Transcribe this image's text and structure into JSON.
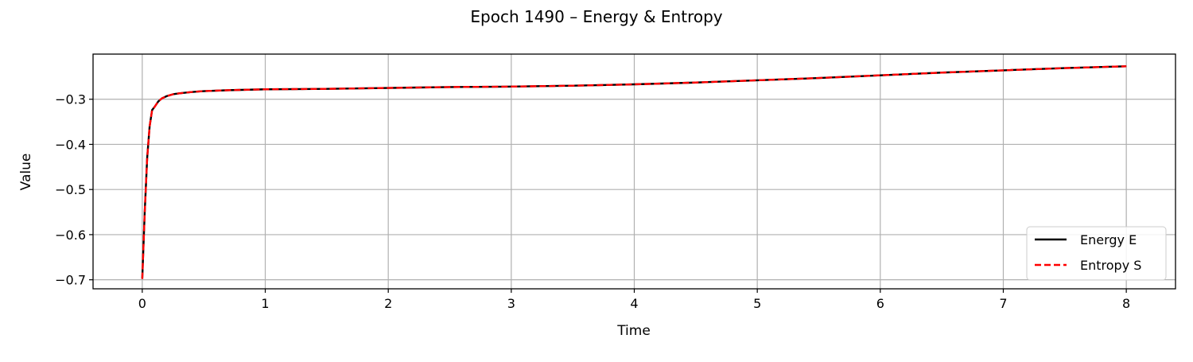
{
  "chart_data": {
    "type": "line",
    "title": "Epoch 1490 – Energy & Entropy",
    "xlabel": "Time",
    "ylabel": "Value",
    "xlim": [
      -0.4,
      8.4
    ],
    "ylim": [
      -0.72,
      -0.2
    ],
    "xticks": [
      0,
      1,
      2,
      3,
      4,
      5,
      6,
      7,
      8
    ],
    "xtick_labels": [
      "0",
      "1",
      "2",
      "3",
      "4",
      "5",
      "6",
      "7",
      "8"
    ],
    "yticks": [
      -0.7,
      -0.6,
      -0.5,
      -0.4,
      -0.3
    ],
    "ytick_labels": [
      "−0.7",
      "−0.6",
      "−0.5",
      "−0.4",
      "−0.3"
    ],
    "grid": true,
    "legend_position": "lower-right",
    "x": [
      0,
      0.02,
      0.04,
      0.06,
      0.08,
      0.1,
      0.13,
      0.16,
      0.2,
      0.25,
      0.3,
      0.4,
      0.5,
      0.7,
      1,
      1.5,
      2,
      2.5,
      3,
      3.5,
      4,
      4.5,
      5,
      5.5,
      6,
      6.5,
      7,
      7.5,
      8
    ],
    "series": [
      {
        "name": "Energy E",
        "color": "#000000",
        "style": "solid",
        "values": [
          -0.698,
          -0.55,
          -0.43,
          -0.36,
          -0.324,
          -0.317,
          -0.305,
          -0.298,
          -0.293,
          -0.289,
          -0.287,
          -0.284,
          -0.282,
          -0.28,
          -0.278,
          -0.277,
          -0.275,
          -0.273,
          -0.272,
          -0.27,
          -0.267,
          -0.263,
          -0.258,
          -0.253,
          -0.247,
          -0.241,
          -0.236,
          -0.231,
          -0.227
        ]
      },
      {
        "name": "Entropy S",
        "color": "#ff0000",
        "style": "dashed",
        "values": [
          -0.698,
          -0.55,
          -0.43,
          -0.36,
          -0.324,
          -0.317,
          -0.305,
          -0.298,
          -0.293,
          -0.289,
          -0.287,
          -0.284,
          -0.282,
          -0.28,
          -0.278,
          -0.277,
          -0.275,
          -0.273,
          -0.272,
          -0.27,
          -0.267,
          -0.263,
          -0.258,
          -0.253,
          -0.247,
          -0.241,
          -0.236,
          -0.231,
          -0.227
        ]
      }
    ]
  }
}
